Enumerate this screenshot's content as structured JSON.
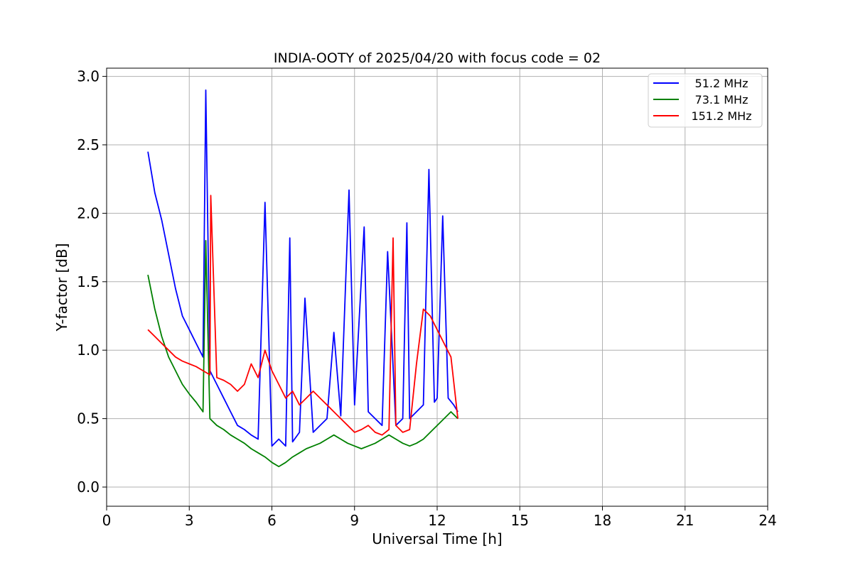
{
  "chart_data": {
    "type": "line",
    "title": "INDIA-OOTY of 2025/04/20 with focus code = 02",
    "xlabel": "Universal Time [h]",
    "ylabel": "Y-factor [dB]",
    "xlim": [
      0,
      24
    ],
    "ylim": [
      -0.14,
      3.06
    ],
    "xticks": [
      0,
      3,
      6,
      9,
      12,
      15,
      18,
      21,
      24
    ],
    "yticks": [
      0.0,
      0.5,
      1.0,
      1.5,
      2.0,
      2.5,
      3.0
    ],
    "xtick_labels": [
      "0",
      "3",
      "6",
      "9",
      "12",
      "15",
      "18",
      "21",
      "24"
    ],
    "ytick_labels": [
      "0.0",
      "0.5",
      "1.0",
      "1.5",
      "2.0",
      "2.5",
      "3.0"
    ],
    "grid": true,
    "legend_position": "top-right",
    "series": [
      {
        "name": "51.2 MHz",
        "color": "#0000ff",
        "x": [
          1.5,
          1.75,
          2.0,
          2.25,
          2.5,
          2.75,
          3.0,
          3.25,
          3.5,
          3.6,
          3.75,
          4.0,
          4.25,
          4.5,
          4.75,
          5.0,
          5.25,
          5.5,
          5.75,
          6.0,
          6.25,
          6.5,
          6.65,
          6.75,
          7.0,
          7.2,
          7.5,
          7.75,
          8.0,
          8.25,
          8.5,
          8.8,
          9.0,
          9.35,
          9.5,
          9.75,
          10.0,
          10.2,
          10.5,
          10.75,
          10.9,
          11.0,
          11.25,
          11.5,
          11.7,
          11.9,
          12.0,
          12.2,
          12.4,
          12.6,
          12.75
        ],
        "y": [
          2.45,
          2.15,
          1.95,
          1.7,
          1.45,
          1.25,
          1.15,
          1.05,
          0.95,
          2.9,
          0.85,
          0.75,
          0.65,
          0.55,
          0.45,
          0.42,
          0.38,
          0.35,
          2.08,
          0.3,
          0.35,
          0.3,
          1.82,
          0.33,
          0.4,
          1.38,
          0.4,
          0.45,
          0.5,
          1.13,
          0.52,
          2.17,
          0.6,
          1.9,
          0.55,
          0.5,
          0.45,
          1.72,
          0.45,
          0.5,
          1.93,
          0.5,
          0.55,
          0.6,
          2.32,
          0.62,
          0.65,
          1.98,
          0.65,
          0.6,
          0.55
        ]
      },
      {
        "name": "73.1 MHz",
        "color": "#008000",
        "x": [
          1.5,
          1.75,
          2.0,
          2.25,
          2.5,
          2.75,
          3.0,
          3.25,
          3.5,
          3.6,
          3.75,
          4.0,
          4.25,
          4.5,
          4.75,
          5.0,
          5.25,
          5.5,
          5.75,
          6.0,
          6.25,
          6.5,
          6.75,
          7.0,
          7.25,
          7.5,
          7.75,
          8.0,
          8.25,
          8.5,
          8.75,
          9.0,
          9.25,
          9.5,
          9.75,
          10.0,
          10.25,
          10.5,
          10.75,
          11.0,
          11.25,
          11.5,
          11.75,
          12.0,
          12.25,
          12.5,
          12.75
        ],
        "y": [
          1.55,
          1.3,
          1.1,
          0.95,
          0.85,
          0.75,
          0.68,
          0.62,
          0.55,
          1.8,
          0.5,
          0.45,
          0.42,
          0.38,
          0.35,
          0.32,
          0.28,
          0.25,
          0.22,
          0.18,
          0.15,
          0.18,
          0.22,
          0.25,
          0.28,
          0.3,
          0.32,
          0.35,
          0.38,
          0.35,
          0.32,
          0.3,
          0.28,
          0.3,
          0.32,
          0.35,
          0.38,
          0.35,
          0.32,
          0.3,
          0.32,
          0.35,
          0.4,
          0.45,
          0.5,
          0.55,
          0.5
        ]
      },
      {
        "name": "151.2 MHz",
        "color": "#ff0000",
        "x": [
          1.5,
          1.75,
          2.0,
          2.25,
          2.5,
          2.75,
          3.0,
          3.25,
          3.5,
          3.75,
          3.78,
          4.0,
          4.25,
          4.5,
          4.75,
          5.0,
          5.25,
          5.5,
          5.75,
          6.0,
          6.25,
          6.5,
          6.75,
          7.0,
          7.25,
          7.5,
          7.75,
          8.0,
          8.25,
          8.5,
          8.75,
          9.0,
          9.25,
          9.5,
          9.75,
          10.0,
          10.25,
          10.4,
          10.5,
          10.75,
          11.0,
          11.25,
          11.5,
          11.75,
          12.0,
          12.25,
          12.5,
          12.75
        ],
        "y": [
          1.15,
          1.1,
          1.05,
          1.0,
          0.95,
          0.92,
          0.9,
          0.88,
          0.85,
          0.82,
          2.13,
          0.8,
          0.78,
          0.75,
          0.7,
          0.75,
          0.9,
          0.8,
          1.0,
          0.85,
          0.75,
          0.65,
          0.7,
          0.6,
          0.65,
          0.7,
          0.65,
          0.6,
          0.55,
          0.5,
          0.45,
          0.4,
          0.42,
          0.45,
          0.4,
          0.38,
          0.42,
          1.82,
          0.45,
          0.4,
          0.42,
          0.9,
          1.3,
          1.25,
          1.15,
          1.05,
          0.95,
          0.5
        ]
      }
    ]
  }
}
